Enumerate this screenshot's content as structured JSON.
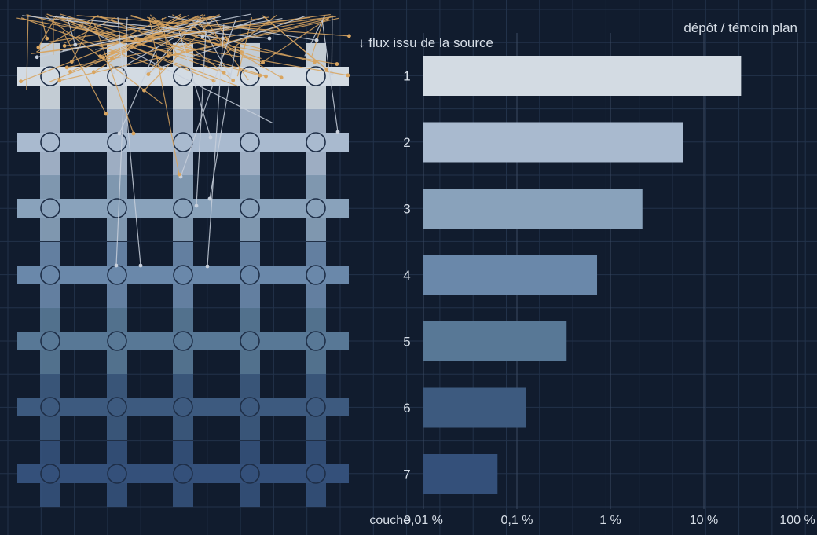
{
  "chart_data": {
    "type": "bar",
    "orientation": "horizontal",
    "title": "dépôt / témoin plan",
    "xscale": "log",
    "xlabel": "",
    "ylabel": "couche",
    "categories": [
      "1",
      "2",
      "3",
      "4",
      "5",
      "6",
      "7"
    ],
    "values": [
      25,
      6,
      2.2,
      0.72,
      0.34,
      0.125,
      0.062
    ],
    "value_unit": "%",
    "xlim": [
      0.01,
      100
    ],
    "xticks": [
      {
        "value": 0.01,
        "label": "0,01 %"
      },
      {
        "value": 0.1,
        "label": "0,1 %"
      },
      {
        "value": 1,
        "label": "1 %"
      },
      {
        "value": 10,
        "label": "10 %"
      },
      {
        "value": 100,
        "label": "100 %"
      }
    ],
    "grid": true,
    "bar_colors": [
      "#d3dbe3",
      "#a9bacf",
      "#89a2bb",
      "#6a88aa",
      "#587896",
      "#3d5a7f",
      "#34507a"
    ]
  },
  "illustration": {
    "annotation": "↓ flux issu de la source",
    "layers": 7,
    "columns": 5,
    "layer_colors": [
      "#d3dbe3",
      "#a9bacf",
      "#89a2bb",
      "#6a88aa",
      "#587896",
      "#3d5a7f",
      "#34507a"
    ],
    "ray_colors": [
      "#d9a560",
      "#c8d0dc"
    ]
  },
  "colors": {
    "background": "#111c2e",
    "grid": "#22324a",
    "text": "#d7dee7"
  }
}
